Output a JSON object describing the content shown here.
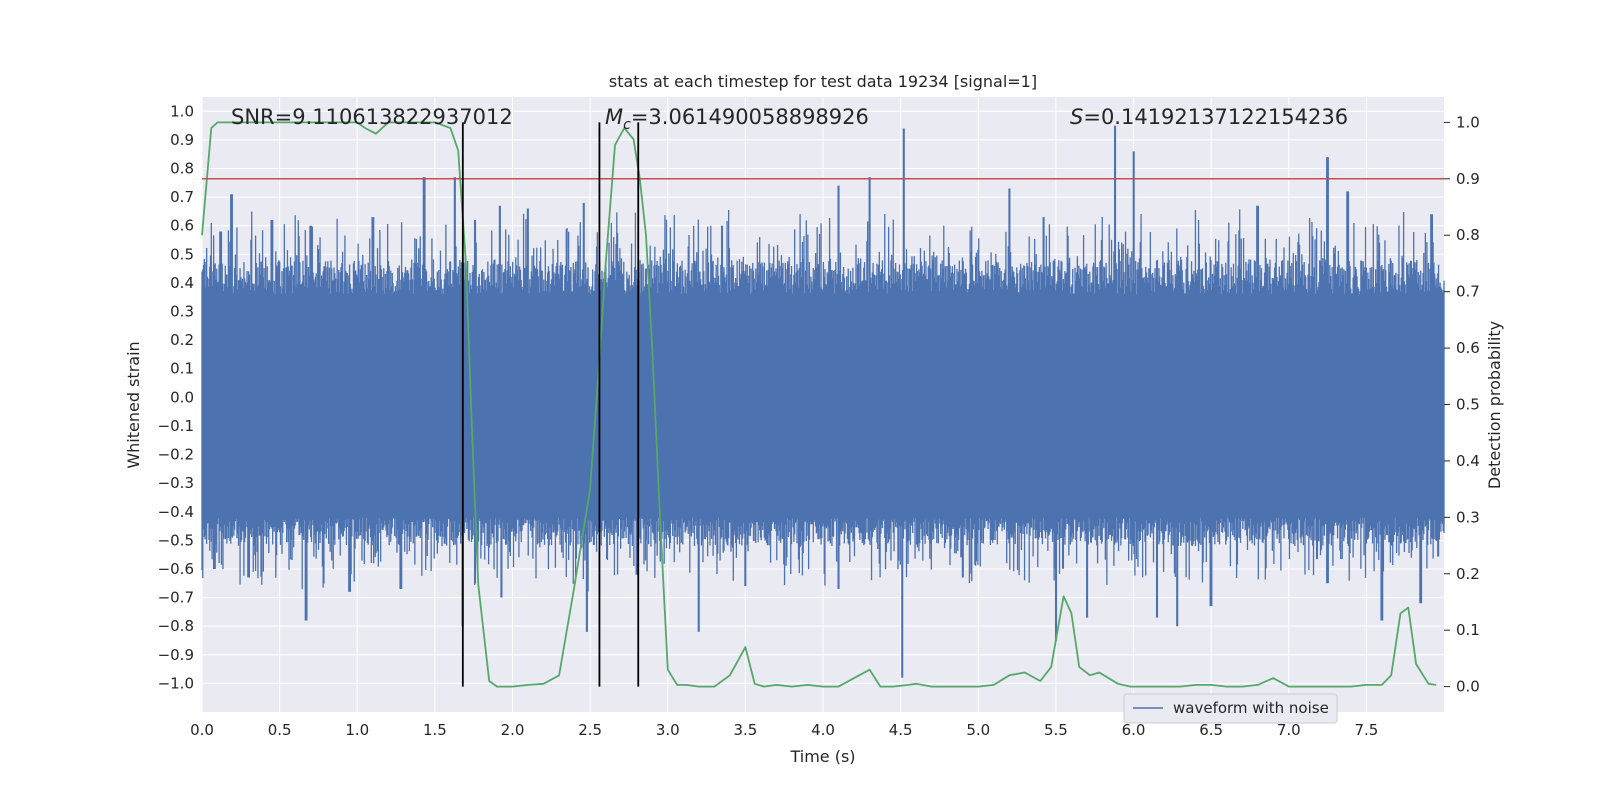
{
  "chart_data": {
    "type": "line",
    "title": "stats at each timestep for test data 19234 [signal=1]",
    "xlabel": "Time (s)",
    "ylabel": "Whitened strain",
    "y2label": "Detection probability",
    "xlim": [
      0,
      8
    ],
    "ylim": [
      -1.1,
      1.05
    ],
    "y2lim": [
      -0.045,
      1.045
    ],
    "xticks": [
      0.0,
      0.5,
      1.0,
      1.5,
      2.0,
      2.5,
      3.0,
      3.5,
      4.0,
      4.5,
      5.0,
      5.5,
      6.0,
      6.5,
      7.0,
      7.5
    ],
    "yticks": [
      -1.0,
      -0.9,
      -0.8,
      -0.7,
      -0.6,
      -0.5,
      -0.4,
      -0.3,
      -0.2,
      -0.1,
      0.0,
      0.1,
      0.2,
      0.3,
      0.4,
      0.5,
      0.6,
      0.7,
      0.8,
      0.9,
      1.0
    ],
    "y2ticks": [
      0.0,
      0.1,
      0.2,
      0.3,
      0.4,
      0.5,
      0.6,
      0.7,
      0.8,
      0.9,
      1.0
    ],
    "grid": true,
    "legend_position": "lower-right",
    "annotations": {
      "snr": "SNR=9.110613822937012",
      "mc": "M_c=3.061490058898926",
      "s": "S=0.14192137122154236"
    },
    "series": [
      {
        "name": "waveform with noise",
        "axis": "left",
        "color": "#4c72b0",
        "kind": "noise-band",
        "x_range": [
          0,
          8
        ],
        "typical_range": [
          -0.42,
          0.36
        ],
        "peaks": [
          [
            0.12,
            0.58
          ],
          [
            0.19,
            0.71
          ],
          [
            0.45,
            0.62
          ],
          [
            0.7,
            0.6
          ],
          [
            1.1,
            0.63
          ],
          [
            1.43,
            0.77
          ],
          [
            1.63,
            0.77
          ],
          [
            1.76,
            0.62
          ],
          [
            1.92,
            0.67
          ],
          [
            2.1,
            0.66
          ],
          [
            2.46,
            0.68
          ],
          [
            3.35,
            0.6
          ],
          [
            4.1,
            0.74
          ],
          [
            4.3,
            0.77
          ],
          [
            4.52,
            0.94
          ],
          [
            5.2,
            0.73
          ],
          [
            5.42,
            0.63
          ],
          [
            5.88,
            0.95
          ],
          [
            6.0,
            0.86
          ],
          [
            6.8,
            0.67
          ],
          [
            7.25,
            0.84
          ],
          [
            7.38,
            0.72
          ],
          [
            7.92,
            0.64
          ]
        ],
        "troughs": [
          [
            0.08,
            -0.6
          ],
          [
            0.3,
            -0.63
          ],
          [
            0.67,
            -0.78
          ],
          [
            0.95,
            -0.68
          ],
          [
            1.28,
            -0.67
          ],
          [
            1.68,
            -0.8
          ],
          [
            1.93,
            -0.7
          ],
          [
            2.48,
            -0.82
          ],
          [
            2.8,
            -0.62
          ],
          [
            3.2,
            -0.82
          ],
          [
            3.5,
            -0.66
          ],
          [
            4.1,
            -0.67
          ],
          [
            4.51,
            -0.98
          ],
          [
            4.9,
            -0.63
          ],
          [
            5.5,
            -0.85
          ],
          [
            5.7,
            -0.77
          ],
          [
            6.15,
            -0.77
          ],
          [
            6.28,
            -0.8
          ],
          [
            6.5,
            -0.73
          ],
          [
            7.25,
            -0.65
          ],
          [
            7.6,
            -0.78
          ],
          [
            7.85,
            -0.72
          ]
        ]
      },
      {
        "name": "",
        "axis": "right",
        "color": "#55a868",
        "x": [
          0.0,
          0.06,
          0.1,
          0.2,
          0.4,
          0.6,
          0.8,
          1.0,
          1.05,
          1.12,
          1.2,
          1.3,
          1.5,
          1.6,
          1.65,
          1.7,
          1.74,
          1.78,
          1.85,
          1.9,
          2.0,
          2.1,
          2.2,
          2.3,
          2.4,
          2.5,
          2.56,
          2.6,
          2.66,
          2.72,
          2.78,
          2.82,
          2.86,
          2.9,
          2.95,
          3.0,
          3.06,
          3.12,
          3.2,
          3.3,
          3.4,
          3.5,
          3.56,
          3.62,
          3.7,
          3.8,
          3.9,
          4.0,
          4.1,
          4.2,
          4.3,
          4.37,
          4.45,
          4.55,
          4.6,
          4.7,
          4.8,
          4.9,
          5.0,
          5.1,
          5.2,
          5.3,
          5.4,
          5.47,
          5.55,
          5.6,
          5.65,
          5.72,
          5.78,
          5.9,
          5.98,
          6.1,
          6.3,
          6.4,
          6.5,
          6.6,
          6.7,
          6.8,
          6.9,
          7.0,
          7.2,
          7.4,
          7.5,
          7.6,
          7.66,
          7.72,
          7.77,
          7.82,
          7.9,
          7.95
        ],
        "values": [
          0.8,
          0.99,
          1.0,
          1.0,
          1.0,
          1.0,
          1.0,
          1.0,
          0.99,
          0.98,
          1.0,
          1.0,
          1.0,
          0.99,
          0.95,
          0.75,
          0.45,
          0.18,
          0.01,
          0.0,
          0.0,
          0.003,
          0.005,
          0.02,
          0.18,
          0.35,
          0.58,
          0.75,
          0.96,
          0.99,
          0.97,
          0.9,
          0.8,
          0.6,
          0.3,
          0.03,
          0.003,
          0.003,
          0.0,
          0.0,
          0.02,
          0.07,
          0.005,
          0.0,
          0.003,
          0.0,
          0.003,
          0.0,
          0.0,
          0.015,
          0.03,
          0.0,
          0.0,
          0.003,
          0.005,
          0.0,
          0.0,
          0.0,
          0.0,
          0.003,
          0.02,
          0.025,
          0.01,
          0.035,
          0.16,
          0.13,
          0.035,
          0.02,
          0.025,
          0.005,
          0.0,
          0.0,
          0.0,
          0.003,
          0.003,
          0.0,
          0.0,
          0.003,
          0.015,
          0.0,
          0.0,
          0.0,
          0.003,
          0.003,
          0.02,
          0.13,
          0.14,
          0.04,
          0.005,
          0.003
        ]
      }
    ],
    "hlines": [
      {
        "axis": "right",
        "y": 0.9,
        "color": "#c44e52"
      }
    ],
    "vlines": [
      1.68,
      2.56,
      2.81
    ]
  }
}
